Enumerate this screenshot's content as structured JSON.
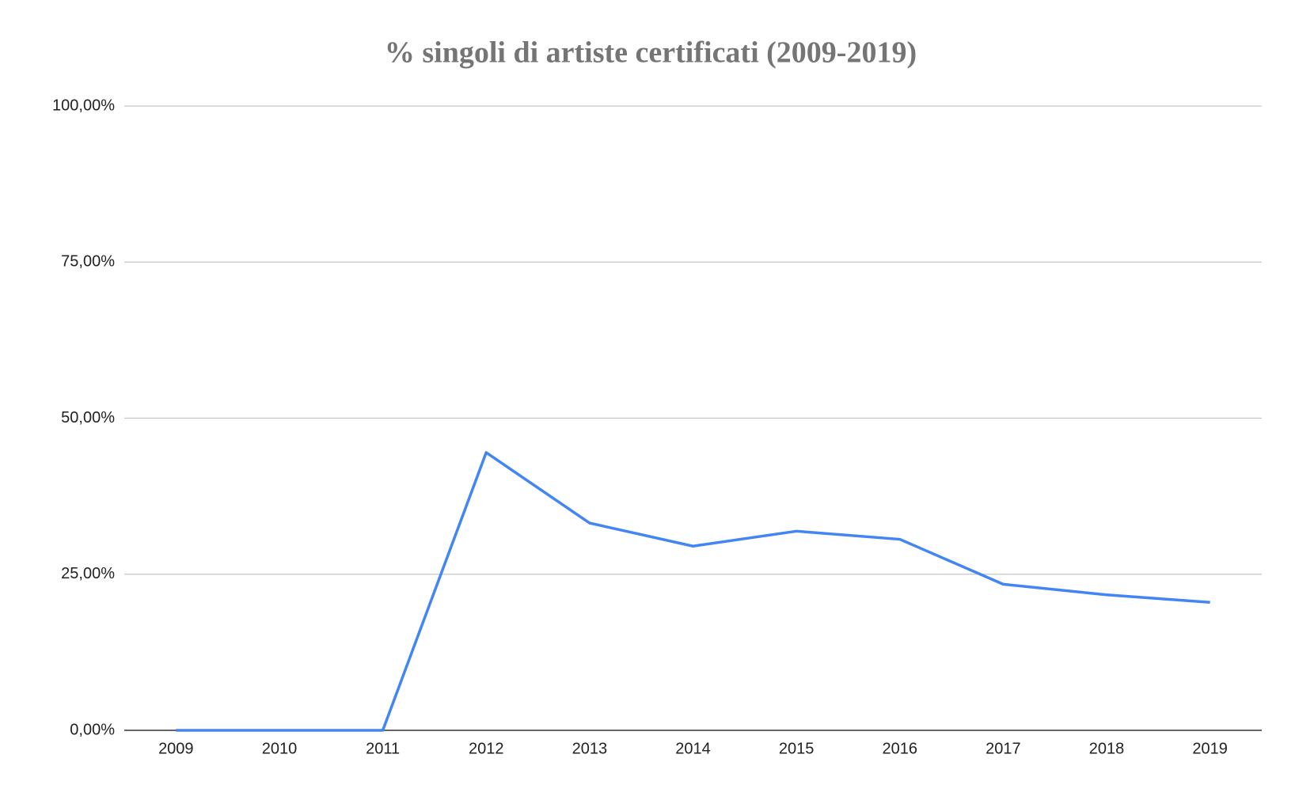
{
  "chart_data": {
    "type": "line",
    "title": "% singoli di artiste certificati (2009-2019)",
    "categories": [
      "2009",
      "2010",
      "2011",
      "2012",
      "2013",
      "2014",
      "2015",
      "2016",
      "2017",
      "2018",
      "2019"
    ],
    "series": [
      {
        "name": "% singoli di artiste certificati",
        "color": "#4285f4",
        "values": [
          0,
          0,
          0,
          44.5,
          33.2,
          29.5,
          31.9,
          30.6,
          23.4,
          21.7,
          20.5
        ]
      }
    ],
    "ylim": [
      0,
      100
    ],
    "yticks": [
      {
        "value": 0,
        "label": "0,00%"
      },
      {
        "value": 25,
        "label": "25,00%"
      },
      {
        "value": 50,
        "label": "50,00%"
      },
      {
        "value": 75,
        "label": "75,00%"
      },
      {
        "value": 100,
        "label": "100,00%"
      }
    ],
    "grid": true
  }
}
